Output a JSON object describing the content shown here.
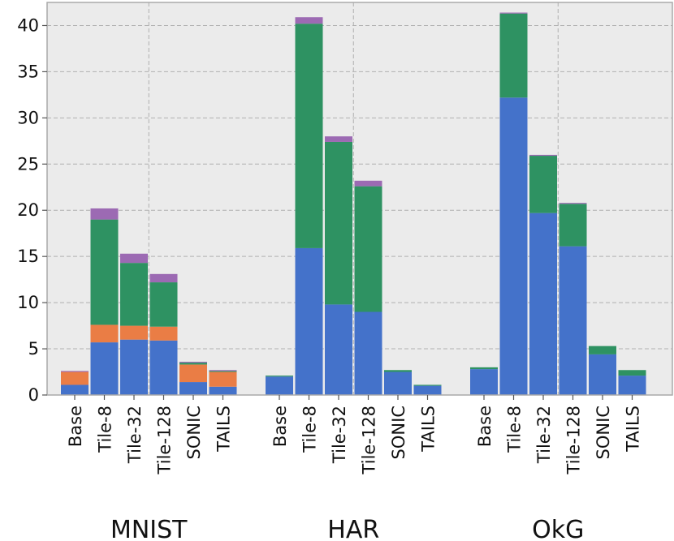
{
  "chart_data": {
    "type": "bar",
    "stacked": true,
    "ylim": [
      0,
      42.5
    ],
    "yticks": [
      0,
      5,
      10,
      15,
      20,
      25,
      30,
      35,
      40
    ],
    "grid": true,
    "groups": [
      {
        "name": "MNIST",
        "categories": [
          "Base",
          "Tile-8",
          "Tile-32",
          "Tile-128",
          "SONIC",
          "TAILS"
        ],
        "series": [
          {
            "color": "#4472ca",
            "values": [
              1.1,
              5.7,
              6.0,
              5.9,
              1.4,
              0.9
            ]
          },
          {
            "color": "#ea7d45",
            "values": [
              1.4,
              1.9,
              1.5,
              1.5,
              1.9,
              1.6
            ]
          },
          {
            "color": "#2e9262",
            "values": [
              0.0,
              11.4,
              6.8,
              4.8,
              0.2,
              0.1
            ]
          },
          {
            "color": "#9c6ab3",
            "values": [
              0.1,
              1.2,
              1.0,
              0.9,
              0.1,
              0.1
            ]
          }
        ]
      },
      {
        "name": "HAR",
        "categories": [
          "Base",
          "Tile-8",
          "Tile-32",
          "Tile-128",
          "SONIC",
          "TAILS"
        ],
        "series": [
          {
            "color": "#4472ca",
            "values": [
              2.0,
              15.9,
              9.8,
              9.0,
              2.5,
              1.0
            ]
          },
          {
            "color": "#ea7d45",
            "values": [
              0.0,
              0.0,
              0.0,
              0.0,
              0.0,
              0.0
            ]
          },
          {
            "color": "#2e9262",
            "values": [
              0.1,
              24.3,
              17.6,
              13.6,
              0.2,
              0.1
            ]
          },
          {
            "color": "#9c6ab3",
            "values": [
              0.0,
              0.7,
              0.6,
              0.6,
              0.0,
              0.0
            ]
          }
        ]
      },
      {
        "name": "OkG",
        "categories": [
          "Base",
          "Tile-8",
          "Tile-32",
          "Tile-128",
          "SONIC",
          "TAILS"
        ],
        "series": [
          {
            "color": "#4472ca",
            "values": [
              2.8,
              32.2,
              19.7,
              16.1,
              4.4,
              2.1
            ]
          },
          {
            "color": "#ea7d45",
            "values": [
              0.0,
              0.0,
              0.0,
              0.0,
              0.0,
              0.0
            ]
          },
          {
            "color": "#2e9262",
            "values": [
              0.2,
              9.1,
              6.2,
              4.6,
              0.9,
              0.6
            ]
          },
          {
            "color": "#9c6ab3",
            "values": [
              0.0,
              0.1,
              0.1,
              0.1,
              0.0,
              0.0
            ]
          }
        ]
      }
    ]
  }
}
